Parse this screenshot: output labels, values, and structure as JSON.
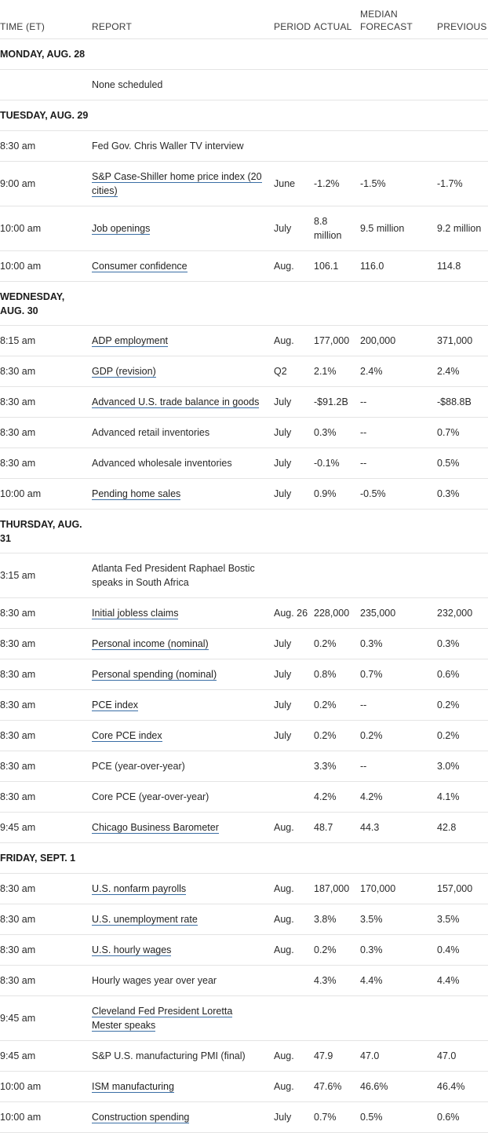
{
  "columns": {
    "time": "TIME (ET)",
    "report": "REPORT",
    "period": "PERIOD",
    "actual": "ACTUAL",
    "forecast": "MEDIAN FORECAST",
    "previous": "PREVIOUS"
  },
  "days": [
    {
      "label": "MONDAY, AUG. 28",
      "rows": [
        {
          "time": "",
          "report": "None scheduled",
          "link": false,
          "period": "",
          "actual": "",
          "forecast": "",
          "previous": ""
        }
      ]
    },
    {
      "label": "TUESDAY, AUG. 29",
      "rows": [
        {
          "time": "8:30 am",
          "report": "Fed Gov. Chris Waller TV interview",
          "link": false,
          "period": "",
          "actual": "",
          "forecast": "",
          "previous": ""
        },
        {
          "time": "9:00 am",
          "report": "S&P Case-Shiller home price index (20 cities)",
          "link": true,
          "period": "June",
          "actual": "-1.2%",
          "forecast": "-1.5%",
          "previous": "-1.7%",
          "tall": true
        },
        {
          "time": "10:00 am",
          "report": "Job openings",
          "link": true,
          "period": "July",
          "actual": "8.8 million",
          "forecast": "9.5 million",
          "previous": "9.2 million",
          "tall": true
        },
        {
          "time": "10:00 am",
          "report": "Consumer confidence",
          "link": true,
          "period": "Aug.",
          "actual": "106.1",
          "forecast": "116.0",
          "previous": "114.8"
        }
      ]
    },
    {
      "label": "WEDNESDAY, AUG. 30",
      "tall": true,
      "rows": [
        {
          "time": "8:15 am",
          "report": "ADP employment",
          "link": true,
          "period": "Aug.",
          "actual": "177,000",
          "forecast": "200,000",
          "previous": "371,000"
        },
        {
          "time": "8:30 am",
          "report": "GDP (revision)",
          "link": true,
          "period": "Q2",
          "actual": "2.1%",
          "forecast": "2.4%",
          "previous": "2.4%"
        },
        {
          "time": "8:30 am",
          "report": "Advanced U.S. trade balance in goods",
          "link": true,
          "period": "July",
          "actual": "-$91.2B",
          "forecast": "--",
          "previous": "-$88.8B"
        },
        {
          "time": "8:30 am",
          "report": "Advanced retail inventories",
          "link": false,
          "period": "July",
          "actual": "0.3%",
          "forecast": "--",
          "previous": "0.7%"
        },
        {
          "time": "8:30 am",
          "report": "Advanced wholesale inventories",
          "link": false,
          "period": "July",
          "actual": "-0.1%",
          "forecast": "--",
          "previous": "0.5%"
        },
        {
          "time": "10:00 am",
          "report": "Pending home sales",
          "link": true,
          "period": "July",
          "actual": "0.9%",
          "forecast": "-0.5%",
          "previous": "0.3%"
        }
      ]
    },
    {
      "label": "THURSDAY, AUG. 31",
      "tall": true,
      "rows": [
        {
          "time": "3:15 am",
          "report": "Atlanta Fed President Raphael Bostic speaks in South Africa",
          "link": false,
          "period": "",
          "actual": "",
          "forecast": "",
          "previous": "",
          "tall": true
        },
        {
          "time": "8:30 am",
          "report": "Initial jobless claims",
          "link": true,
          "period": "Aug. 26",
          "actual": "228,000",
          "forecast": "235,000",
          "previous": "232,000"
        },
        {
          "time": "8:30 am",
          "report": "Personal income (nominal)",
          "link": true,
          "period": "July",
          "actual": "0.2%",
          "forecast": "0.3%",
          "previous": "0.3%"
        },
        {
          "time": "8:30 am",
          "report": "Personal spending (nominal)",
          "link": true,
          "period": "July",
          "actual": "0.8%",
          "forecast": "0.7%",
          "previous": "0.6%"
        },
        {
          "time": "8:30 am",
          "report": "PCE index",
          "link": true,
          "period": "July",
          "actual": "0.2%",
          "forecast": "--",
          "previous": "0.2%"
        },
        {
          "time": "8:30 am",
          "report": "Core PCE index",
          "link": true,
          "period": "July",
          "actual": "0.2%",
          "forecast": "0.2%",
          "previous": "0.2%"
        },
        {
          "time": "8:30 am",
          "report": "PCE (year-over-year)",
          "link": false,
          "period": "",
          "actual": "3.3%",
          "forecast": "--",
          "previous": "3.0%"
        },
        {
          "time": "8:30 am",
          "report": "Core PCE (year-over-year)",
          "link": false,
          "period": "",
          "actual": "4.2%",
          "forecast": "4.2%",
          "previous": "4.1%"
        },
        {
          "time": "9:45 am",
          "report": "Chicago Business Barometer",
          "link": true,
          "period": "Aug.",
          "actual": "48.7",
          "forecast": "44.3",
          "previous": "42.8"
        }
      ]
    },
    {
      "label": "FRIDAY, SEPT. 1",
      "rows": [
        {
          "time": "8:30 am",
          "report": "U.S. nonfarm payrolls",
          "link": true,
          "period": "Aug.",
          "actual": "187,000",
          "forecast": "170,000",
          "previous": "157,000"
        },
        {
          "time": "8:30 am",
          "report": "U.S. unemployment rate",
          "link": true,
          "period": "Aug.",
          "actual": "3.8%",
          "forecast": "3.5%",
          "previous": "3.5%"
        },
        {
          "time": "8:30 am",
          "report": "U.S. hourly wages",
          "link": true,
          "period": "Aug.",
          "actual": "0.2%",
          "forecast": "0.3%",
          "previous": "0.4%"
        },
        {
          "time": "8:30 am",
          "report": "Hourly wages year over year",
          "link": false,
          "period": "",
          "actual": "4.3%",
          "forecast": "4.4%",
          "previous": "4.4%"
        },
        {
          "time": "9:45 am",
          "report": "Cleveland Fed President Loretta Mester speaks",
          "link": true,
          "period": "",
          "actual": "",
          "forecast": "",
          "previous": "",
          "tall": true
        },
        {
          "time": "9:45 am",
          "report": "S&P U.S. manufacturing PMI (final)",
          "link": false,
          "period": "Aug.",
          "actual": "47.9",
          "forecast": "47.0",
          "previous": "47.0"
        },
        {
          "time": "10:00 am",
          "report": "ISM manufacturing",
          "link": true,
          "period": "Aug.",
          "actual": "47.6%",
          "forecast": "46.6%",
          "previous": "46.4%"
        },
        {
          "time": "10:00 am",
          "report": "Construction spending",
          "link": true,
          "period": "July",
          "actual": "0.7%",
          "forecast": "0.5%",
          "previous": "0.6%"
        }
      ]
    }
  ]
}
